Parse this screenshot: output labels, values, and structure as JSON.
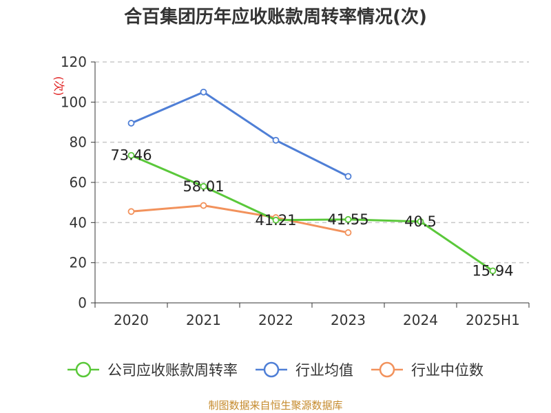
{
  "title": "合百集团历年应收账款周转率情况(次)",
  "footer": "制图数据来自恒生聚源数据库",
  "chart_data": {
    "type": "line",
    "title": "合百集团历年应收账款周转率情况(次)",
    "ylabel": "(次)",
    "xlabel": "",
    "categories": [
      "2020",
      "2021",
      "2022",
      "2023",
      "2024",
      "2025H1"
    ],
    "ylim": [
      0,
      120
    ],
    "yticks": [
      0,
      20,
      40,
      60,
      80,
      100,
      120
    ],
    "grid": true,
    "legend_position": "bottom",
    "series": [
      {
        "name": "公司应收账款周转率",
        "color": "#5ac83a",
        "values": [
          73.46,
          58.01,
          41.21,
          41.55,
          40.5,
          15.94
        ],
        "show_labels": true
      },
      {
        "name": "行业均值",
        "color": "#4f7fd6",
        "values": [
          89.5,
          105,
          81,
          63,
          null,
          null
        ],
        "show_labels": false
      },
      {
        "name": "行业中位数",
        "color": "#f2925c",
        "values": [
          45.5,
          48.5,
          42.5,
          35,
          null,
          null
        ],
        "show_labels": false
      }
    ]
  }
}
